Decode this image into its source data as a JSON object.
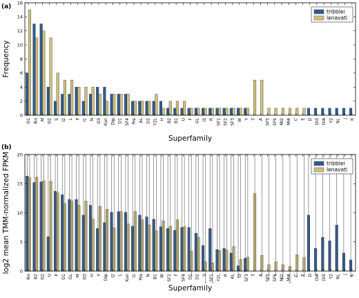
{
  "colors": {
    "tribblei": "#2f5a94",
    "lenavati": "#cfc07a",
    "edge": "#333333"
  },
  "chart_data": [
    {
      "panel_label": "(a)",
      "type": "bar",
      "xlabel": "Superfamily",
      "ylabel": "Frequency",
      "ylim": [
        0,
        16
      ],
      "yticks": [
        0,
        2,
        4,
        6,
        8,
        10,
        12,
        14,
        16
      ],
      "legend": "top-right",
      "categories": [
        "O1",
        "Iko",
        "M",
        "O2",
        "S",
        "I2",
        "L",
        "P",
        "I1",
        "N",
        "O3",
        "Kun",
        "Dip",
        "D1",
        "SF4",
        "Pre",
        "AL",
        "D2",
        "Y2L",
        "H",
        "B2",
        "B1",
        "U",
        "F",
        "GL",
        "I3",
        "R",
        "SF1",
        "SF2",
        "SF3",
        "W",
        "Y",
        "T",
        "A",
        "SF5",
        "SF6",
        "MI2",
        "MI4",
        "C",
        "E",
        "D",
        "Di3",
        "DI4",
        "Y2",
        "NL",
        "J",
        "K"
      ],
      "series": [
        {
          "name": "tribblei",
          "color": "#2f5a94",
          "values": [
            6,
            13,
            13,
            4,
            2,
            3,
            3,
            4,
            2,
            3,
            4,
            4,
            3,
            3,
            3,
            2,
            2,
            2,
            2,
            2,
            1,
            1,
            1,
            1,
            1,
            1,
            1,
            1,
            1,
            1,
            1,
            1,
            0,
            0,
            0,
            0,
            0,
            0,
            0,
            0,
            1,
            1,
            1,
            1,
            1,
            1,
            1
          ]
        },
        {
          "name": "lenavati",
          "color": "#cfc07a",
          "values": [
            15,
            11,
            12,
            11,
            6,
            5,
            5,
            4,
            4,
            4,
            3,
            2,
            3,
            3,
            3,
            2,
            2,
            2,
            3,
            1,
            2,
            2,
            2,
            1,
            1,
            1,
            1,
            1,
            1,
            1,
            1,
            1,
            5,
            5,
            1,
            1,
            1,
            1,
            1,
            1,
            0,
            0,
            0,
            0,
            0,
            0,
            0
          ]
        }
      ]
    },
    {
      "panel_label": "(b)",
      "type": "bar",
      "xlabel": "Superfamily",
      "ylabel": "log2 mean TMM-normalized FPKM",
      "ylim": [
        0,
        20
      ],
      "yticks": [
        0,
        5,
        10,
        15,
        20
      ],
      "legend": "top-right",
      "categories": [
        "Iko",
        "B2",
        "O2",
        "U",
        "P",
        "O1",
        "GL",
        "M",
        "O3",
        "H",
        "Y",
        "Dip",
        "I2",
        "L",
        "Kun",
        "I1",
        "Pre",
        "N",
        "B1",
        "W",
        "SF2",
        "F",
        "SF4",
        "D1",
        "D2",
        "S",
        "SF1",
        "Y2L",
        "R",
        "AL",
        "I3",
        "SF3",
        "T",
        "A",
        "SF5",
        "SF6",
        "MI2",
        "MI4",
        "C",
        "E",
        "D",
        "Di4",
        "Di3",
        "Y2",
        "NL",
        "J",
        "K"
      ],
      "series": [
        {
          "name": "tribblei",
          "color": "#2f5a94",
          "values": [
            16.3,
            15.2,
            15.3,
            5.9,
            13.7,
            13.1,
            12.3,
            12.3,
            9.6,
            11.3,
            7.3,
            8.3,
            10.1,
            10.2,
            10.1,
            7.7,
            9.6,
            9.3,
            8.9,
            7.6,
            7.3,
            7.0,
            7.5,
            7.5,
            6.5,
            4.4,
            7.3,
            3.7,
            3.9,
            3.1,
            0.9,
            2.2,
            0,
            0,
            0,
            0,
            0,
            0,
            0,
            0,
            9.6,
            3.9,
            5.8,
            5.2,
            7.9,
            3.1,
            1.9
          ],
          "errors": [
            0.6,
            0.7,
            0.6,
            1.5,
            0.8,
            0.8,
            1.0,
            1.0,
            1.4,
            1.2,
            2.1,
            2.0,
            1.0,
            1.1,
            1.0,
            2.3,
            1.3,
            1.2,
            1.4,
            1.9,
            1.9,
            2.2,
            1.7,
            1.8,
            2.1,
            3.0,
            2.3,
            2.3,
            1.7,
            2.4,
            2.0,
            2.3,
            0,
            0,
            0,
            0,
            0,
            0,
            0,
            0,
            0.6,
            4.4,
            4.4,
            3.8,
            1.3,
            1.1,
            2.9
          ]
        },
        {
          "name": "lenavati",
          "color": "#cfc07a",
          "values": [
            16.0,
            16.1,
            15.5,
            15.4,
            13.4,
            11.6,
            12.0,
            11.3,
            12.0,
            8.9,
            11.1,
            10.6,
            7.4,
            10.2,
            8.1,
            10.2,
            8.8,
            7.9,
            6.9,
            8.6,
            7.7,
            8.8,
            7.6,
            3.4,
            5.8,
            1.6,
            1.4,
            3.5,
            3.6,
            4.2,
            2.0,
            2.4,
            13.3,
            2.7,
            1.1,
            1.6,
            1.1,
            0.8,
            2.8,
            2.3,
            0,
            0,
            0,
            0,
            0,
            0,
            0
          ],
          "errors": [
            0.5,
            0.6,
            0.7,
            0.7,
            0.9,
            1.2,
            1.1,
            1.2,
            1.1,
            1.8,
            1.0,
            1.1,
            2.5,
            1.2,
            2.1,
            1.1,
            1.6,
            2.0,
            2.5,
            1.7,
            2.0,
            1.7,
            2.2,
            4.3,
            2.9,
            3.6,
            3.4,
            1.8,
            2.6,
            2.5,
            1.7,
            2.4,
            3.2,
            3.3,
            2.4,
            2.3,
            2.4,
            2.8,
            3.8,
            3.2,
            0,
            0,
            0,
            0,
            0,
            0,
            0
          ]
        }
      ]
    }
  ]
}
